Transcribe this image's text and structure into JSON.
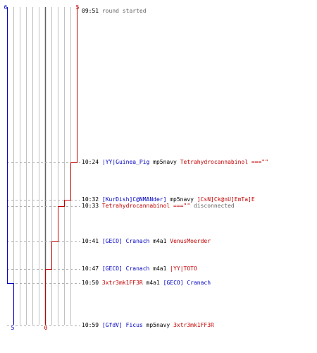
{
  "scores": {
    "blue_top": "6",
    "red_top": "5",
    "blue_bottom": "5",
    "red_bottom": "0"
  },
  "colors": {
    "blue": "#0000c0",
    "red": "#c00000",
    "grid": "#c0c0c0",
    "center": "#606060",
    "dash": "#b0b0b0"
  },
  "events": [
    {
      "time": "09:51",
      "parts": [
        {
          "text": "round started",
          "color": "grey"
        }
      ]
    },
    {
      "time": "10:24",
      "parts": [
        {
          "text": "|YY|Guinea_Pig",
          "color": "blue"
        },
        {
          "text": "mp5navy",
          "color": "black"
        },
        {
          "text": "Tetrahydrocannabinol ===\"\"",
          "color": "red"
        }
      ]
    },
    {
      "time": "10:32",
      "parts": [
        {
          "text": "[KurDish]C@NMANder]",
          "color": "blue"
        },
        {
          "text": "mp5navy",
          "color": "black"
        },
        {
          "text": "]CsN]Ck@nU]EmTa]E",
          "color": "red"
        }
      ]
    },
    {
      "time": "10:33",
      "parts": [
        {
          "text": "Tetrahydrocannabinol ===\"\"",
          "color": "red"
        },
        {
          "text": "disconnected",
          "color": "grey"
        }
      ]
    },
    {
      "time": "10:41",
      "parts": [
        {
          "text": "[GECO] Cranach",
          "color": "blue"
        },
        {
          "text": "m4a1",
          "color": "black"
        },
        {
          "text": "VenusMoerder",
          "color": "red"
        }
      ]
    },
    {
      "time": "10:47",
      "parts": [
        {
          "text": "[GECO] Cranach",
          "color": "blue"
        },
        {
          "text": "m4a1",
          "color": "black"
        },
        {
          "text": "|YY|TOTO",
          "color": "red"
        }
      ]
    },
    {
      "time": "10:50",
      "parts": [
        {
          "text": "3xtr3mk1FF3R",
          "color": "red"
        },
        {
          "text": "m4a1",
          "color": "black"
        },
        {
          "text": "[GECO] Cranach",
          "color": "blue"
        }
      ]
    },
    {
      "time": "10:59",
      "parts": [
        {
          "text": "[GfdV] Ficus",
          "color": "blue"
        },
        {
          "text": "mp5navy",
          "color": "black"
        },
        {
          "text": "3xtr3mk1FF3R",
          "color": "red"
        }
      ]
    }
  ]
}
